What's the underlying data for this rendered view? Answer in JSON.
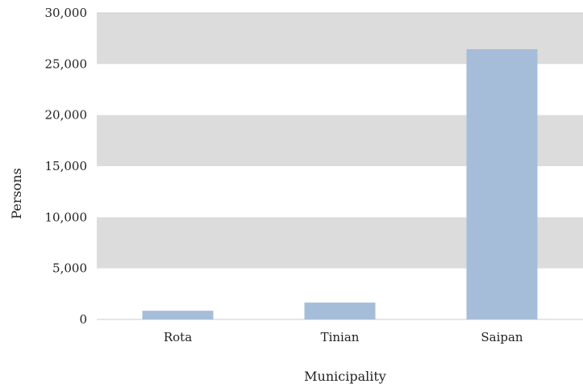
{
  "chart_data": {
    "type": "bar",
    "categories": [
      "Rota",
      "Tinian",
      "Saipan"
    ],
    "values": [
      850,
      1650,
      26450
    ],
    "title": "",
    "xlabel": "Municipality",
    "ylabel": "Persons",
    "ylim": [
      0,
      30000
    ],
    "yticks": [
      "0",
      "5,000",
      "10,000",
      "15,000",
      "20,000",
      "25,000",
      "30,000"
    ],
    "ytick_values": [
      0,
      5000,
      10000,
      15000,
      20000,
      25000,
      30000
    ],
    "grid": "alternating horizontal bands",
    "legend": "none",
    "colors": {
      "bar": "#a5bdd9",
      "band": "#dcdcdc",
      "gridline": "#cccccc",
      "text": "#222222"
    }
  }
}
